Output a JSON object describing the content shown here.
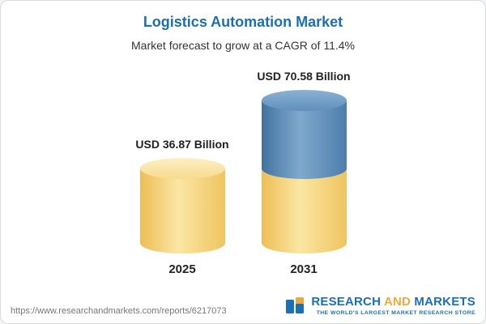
{
  "header": {
    "title": "Logistics Automation Market",
    "subtitle": "Market forecast to grow at a CAGR of 11.4%"
  },
  "chart_data": {
    "type": "bar",
    "title": "Logistics Automation Market",
    "subtitle": "Market forecast to grow at a CAGR of 11.4%",
    "unit": "USD Billion",
    "categories": [
      "2025",
      "2031"
    ],
    "values": [
      36.87,
      70.58
    ],
    "bar_labels": [
      "USD 36.87 Billion",
      "USD 70.58 Billion"
    ],
    "cagr_percent": 11.4,
    "ylim": [
      0,
      80
    ],
    "legend": "none",
    "grid": false,
    "colors": {
      "bar_yellow": "#f6cf6b",
      "bar_blue": "#4c7eac",
      "title_blue": "#1b6fb5"
    }
  },
  "footer": {
    "source_url": "https://www.researchandmarkets.com/reports/6217073",
    "logo": {
      "word1": "RESEARCH",
      "word2": "AND",
      "word3": "MARKETS",
      "tagline": "THE WORLD'S LARGEST MARKET RESEARCH STORE"
    }
  }
}
